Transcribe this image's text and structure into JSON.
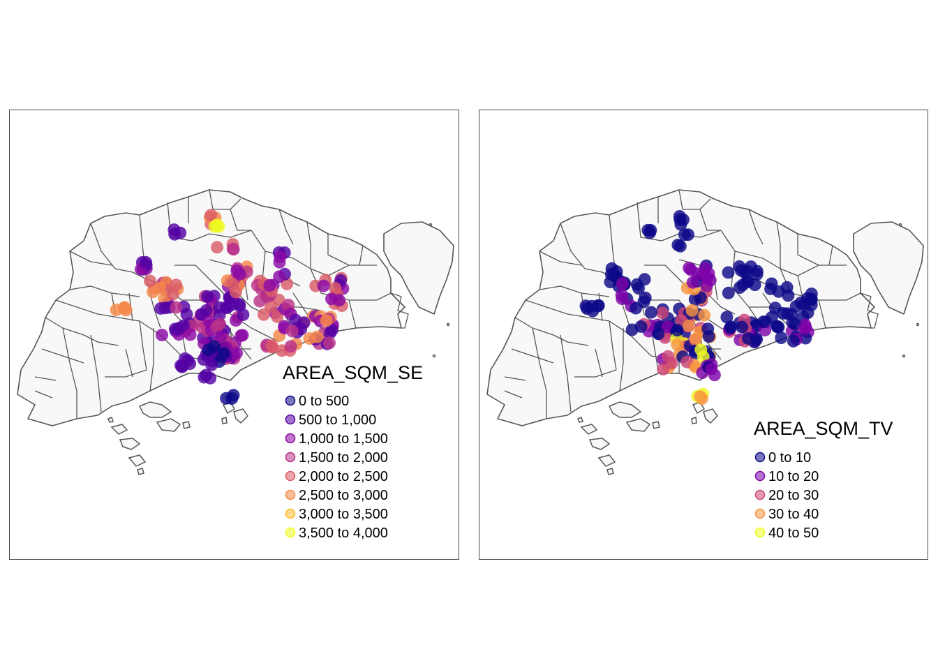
{
  "maps": [
    {
      "id": "se",
      "legend_title": "AREA_SQM_SE",
      "classes": [
        {
          "label": "0 to 500",
          "color": "#0d0887"
        },
        {
          "label": "500 to 1,000",
          "color": "#5402a3"
        },
        {
          "label": "1,000 to 1,500",
          "color": "#8b0aa5"
        },
        {
          "label": "1,500 to 2,000",
          "color": "#b93289"
        },
        {
          "label": "2,000 to 2,500",
          "color": "#db5c68"
        },
        {
          "label": "2,500 to 3,000",
          "color": "#f48849"
        },
        {
          "label": "3,000 to 3,500",
          "color": "#febc2a"
        },
        {
          "label": "3,500 to 4,000",
          "color": "#f0f921"
        }
      ]
    },
    {
      "id": "tv",
      "legend_title": "AREA_SQM_TV",
      "classes": [
        {
          "label": "0 to 10",
          "color": "#0d0887"
        },
        {
          "label": "10 to 20",
          "color": "#7e03a8"
        },
        {
          "label": "20 to 30",
          "color": "#cc4778"
        },
        {
          "label": "30 to 40",
          "color": "#f89540"
        },
        {
          "label": "40 to 50",
          "color": "#f0f921"
        }
      ]
    }
  ]
}
